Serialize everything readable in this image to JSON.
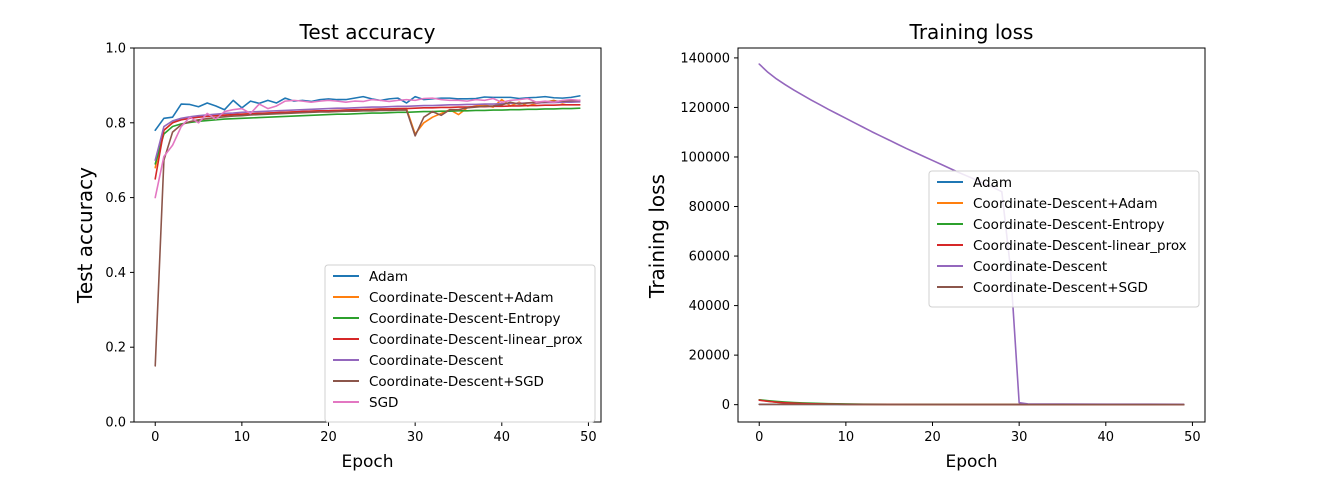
{
  "chart_data": [
    {
      "type": "line",
      "title": "Test accuracy",
      "xlabel": "Epoch",
      "ylabel": "Test accuracy",
      "xlim": [
        -2.45,
        51.45
      ],
      "ylim": [
        0.0,
        1.0
      ],
      "xticks": [
        0,
        10,
        20,
        30,
        40,
        50
      ],
      "yticks": [
        0.0,
        0.2,
        0.4,
        0.6,
        0.8,
        1.0
      ],
      "xtick_labels": [
        "0",
        "10",
        "20",
        "30",
        "40",
        "50"
      ],
      "ytick_labels": [
        "0.0",
        "0.2",
        "0.4",
        "0.6",
        "0.8",
        "1.0"
      ],
      "legend_position": "lower right",
      "grid": false,
      "series": [
        {
          "name": "Adam",
          "color": "#1f77b4",
          "x": [
            0,
            1,
            2,
            3,
            4,
            5,
            6,
            7,
            8,
            9,
            10,
            11,
            12,
            13,
            14,
            15,
            16,
            17,
            18,
            19,
            20,
            21,
            22,
            23,
            24,
            25,
            26,
            27,
            28,
            29,
            30,
            31,
            32,
            33,
            34,
            35,
            36,
            37,
            38,
            39,
            40,
            41,
            42,
            43,
            44,
            45,
            46,
            47,
            48,
            49
          ],
          "y": [
            0.78,
            0.812,
            0.815,
            0.85,
            0.849,
            0.843,
            0.853,
            0.845,
            0.835,
            0.86,
            0.84,
            0.858,
            0.852,
            0.86,
            0.853,
            0.866,
            0.858,
            0.86,
            0.857,
            0.862,
            0.864,
            0.862,
            0.862,
            0.866,
            0.87,
            0.864,
            0.86,
            0.864,
            0.866,
            0.853,
            0.87,
            0.862,
            0.864,
            0.866,
            0.866,
            0.864,
            0.864,
            0.865,
            0.869,
            0.868,
            0.868,
            0.868,
            0.865,
            0.867,
            0.868,
            0.87,
            0.867,
            0.866,
            0.868,
            0.872
          ]
        },
        {
          "name": "Coordinate-Descent+Adam",
          "color": "#ff7f0e",
          "x": [
            0,
            1,
            2,
            3,
            4,
            5,
            6,
            7,
            8,
            9,
            10,
            11,
            12,
            13,
            14,
            15,
            16,
            17,
            18,
            19,
            20,
            21,
            22,
            23,
            24,
            25,
            26,
            27,
            28,
            29,
            30,
            31,
            32,
            33,
            34,
            35,
            36,
            37,
            38,
            39,
            40,
            41,
            42,
            43,
            44,
            45,
            46,
            47,
            48,
            49
          ],
          "y": [
            0.68,
            0.78,
            0.8,
            0.81,
            0.814,
            0.816,
            0.818,
            0.82,
            0.821,
            0.822,
            0.823,
            0.824,
            0.825,
            0.826,
            0.827,
            0.828,
            0.829,
            0.83,
            0.831,
            0.832,
            0.832,
            0.833,
            0.834,
            0.834,
            0.835,
            0.836,
            0.836,
            0.837,
            0.837,
            0.838,
            0.77,
            0.8,
            0.815,
            0.825,
            0.835,
            0.822,
            0.84,
            0.845,
            0.848,
            0.842,
            0.862,
            0.845,
            0.855,
            0.845,
            0.852,
            0.855,
            0.86,
            0.853,
            0.858,
            0.856
          ]
        },
        {
          "name": "Coordinate-Descent-Entropy",
          "color": "#2ca02c",
          "x": [
            0,
            1,
            2,
            3,
            4,
            5,
            6,
            7,
            8,
            9,
            10,
            11,
            12,
            13,
            14,
            15,
            16,
            17,
            18,
            19,
            20,
            21,
            22,
            23,
            24,
            25,
            26,
            27,
            28,
            29,
            30,
            31,
            32,
            33,
            34,
            35,
            36,
            37,
            38,
            39,
            40,
            41,
            42,
            43,
            44,
            45,
            46,
            47,
            48,
            49
          ],
          "y": [
            0.69,
            0.77,
            0.79,
            0.797,
            0.801,
            0.804,
            0.806,
            0.808,
            0.81,
            0.811,
            0.812,
            0.813,
            0.814,
            0.815,
            0.816,
            0.817,
            0.818,
            0.819,
            0.82,
            0.821,
            0.822,
            0.823,
            0.823,
            0.824,
            0.825,
            0.826,
            0.826,
            0.827,
            0.828,
            0.828,
            0.829,
            0.83,
            0.83,
            0.831,
            0.831,
            0.832,
            0.832,
            0.833,
            0.833,
            0.834,
            0.834,
            0.835,
            0.835,
            0.836,
            0.836,
            0.837,
            0.837,
            0.838,
            0.838,
            0.839
          ]
        },
        {
          "name": "Coordinate-Descent-linear_prox",
          "color": "#d62728",
          "x": [
            0,
            1,
            2,
            3,
            4,
            5,
            6,
            7,
            8,
            9,
            10,
            11,
            12,
            13,
            14,
            15,
            16,
            17,
            18,
            19,
            20,
            21,
            22,
            23,
            24,
            25,
            26,
            27,
            28,
            29,
            30,
            31,
            32,
            33,
            34,
            35,
            36,
            37,
            38,
            39,
            40,
            41,
            42,
            43,
            44,
            45,
            46,
            47,
            48,
            49
          ],
          "y": [
            0.65,
            0.78,
            0.8,
            0.808,
            0.812,
            0.815,
            0.817,
            0.819,
            0.82,
            0.822,
            0.823,
            0.824,
            0.825,
            0.826,
            0.827,
            0.828,
            0.829,
            0.83,
            0.831,
            0.832,
            0.832,
            0.833,
            0.834,
            0.835,
            0.835,
            0.836,
            0.837,
            0.837,
            0.838,
            0.838,
            0.839,
            0.84,
            0.84,
            0.841,
            0.841,
            0.842,
            0.842,
            0.843,
            0.843,
            0.844,
            0.844,
            0.845,
            0.845,
            0.846,
            0.846,
            0.847,
            0.847,
            0.848,
            0.848,
            0.848
          ]
        },
        {
          "name": "Coordinate-Descent",
          "color": "#9467bd",
          "x": [
            0,
            1,
            2,
            3,
            4,
            5,
            6,
            7,
            8,
            9,
            10,
            11,
            12,
            13,
            14,
            15,
            16,
            17,
            18,
            19,
            20,
            21,
            22,
            23,
            24,
            25,
            26,
            27,
            28,
            29,
            30,
            31,
            32,
            33,
            34,
            35,
            36,
            37,
            38,
            39,
            40,
            41,
            42,
            43,
            44,
            45,
            46,
            47,
            48,
            49
          ],
          "y": [
            0.7,
            0.79,
            0.805,
            0.812,
            0.816,
            0.819,
            0.821,
            0.823,
            0.825,
            0.826,
            0.828,
            0.829,
            0.83,
            0.831,
            0.832,
            0.833,
            0.834,
            0.835,
            0.836,
            0.837,
            0.838,
            0.839,
            0.839,
            0.84,
            0.841,
            0.842,
            0.842,
            0.843,
            0.844,
            0.844,
            0.845,
            0.846,
            0.846,
            0.847,
            0.848,
            0.848,
            0.849,
            0.849,
            0.85,
            0.85,
            0.851,
            0.852,
            0.852,
            0.853,
            0.853,
            0.854,
            0.854,
            0.855,
            0.855,
            0.856
          ]
        },
        {
          "name": "Coordinate-Descent+SGD",
          "color": "#8c564b",
          "x": [
            0,
            1,
            2,
            3,
            4,
            5,
            6,
            7,
            8,
            9,
            10,
            11,
            12,
            13,
            14,
            15,
            16,
            17,
            18,
            19,
            20,
            21,
            22,
            23,
            24,
            25,
            26,
            27,
            28,
            29,
            30,
            31,
            32,
            33,
            34,
            35,
            36,
            37,
            38,
            39,
            40,
            41,
            42,
            43,
            44,
            45,
            46,
            47,
            48,
            49
          ],
          "y": [
            0.15,
            0.7,
            0.775,
            0.795,
            0.803,
            0.808,
            0.811,
            0.814,
            0.816,
            0.818,
            0.819,
            0.821,
            0.822,
            0.823,
            0.824,
            0.825,
            0.826,
            0.827,
            0.828,
            0.829,
            0.829,
            0.83,
            0.831,
            0.831,
            0.832,
            0.832,
            0.833,
            0.833,
            0.834,
            0.834,
            0.765,
            0.815,
            0.83,
            0.82,
            0.835,
            0.835,
            0.84,
            0.842,
            0.844,
            0.845,
            0.848,
            0.855,
            0.85,
            0.853,
            0.855,
            0.856,
            0.857,
            0.858,
            0.859,
            0.86
          ]
        },
        {
          "name": "SGD",
          "color": "#e377c2",
          "x": [
            0,
            1,
            2,
            3,
            4,
            5,
            6,
            7,
            8,
            9,
            10,
            11,
            12,
            13,
            14,
            15,
            16,
            17,
            18,
            19,
            20,
            21,
            22,
            23,
            24,
            25,
            26,
            27,
            28,
            29,
            30,
            31,
            32,
            33,
            34,
            35,
            36,
            37,
            38,
            39,
            40,
            41,
            42,
            43,
            44,
            45,
            46,
            47,
            48,
            49
          ],
          "y": [
            0.6,
            0.71,
            0.74,
            0.79,
            0.815,
            0.8,
            0.825,
            0.81,
            0.83,
            0.835,
            0.838,
            0.825,
            0.85,
            0.838,
            0.845,
            0.858,
            0.86,
            0.858,
            0.855,
            0.858,
            0.86,
            0.858,
            0.855,
            0.858,
            0.857,
            0.862,
            0.86,
            0.857,
            0.86,
            0.862,
            0.86,
            0.865,
            0.866,
            0.862,
            0.86,
            0.86,
            0.858,
            0.862,
            0.86,
            0.865,
            0.855,
            0.86,
            0.862,
            0.865,
            0.855,
            0.858,
            0.855,
            0.86,
            0.862,
            0.86
          ]
        }
      ]
    },
    {
      "type": "line",
      "title": "Training loss",
      "xlabel": "Epoch",
      "ylabel": "Training loss",
      "xlim": [
        -2.45,
        51.45
      ],
      "ylim": [
        -7000,
        144000
      ],
      "xticks": [
        0,
        10,
        20,
        30,
        40,
        50
      ],
      "yticks": [
        0,
        20000,
        40000,
        60000,
        80000,
        100000,
        120000,
        140000
      ],
      "xtick_labels": [
        "0",
        "10",
        "20",
        "30",
        "40",
        "50"
      ],
      "ytick_labels": [
        "0",
        "20000",
        "40000",
        "60000",
        "80000",
        "100000",
        "120000",
        "140000"
      ],
      "legend_position": "center right",
      "grid": false,
      "series": [
        {
          "name": "Adam",
          "color": "#1f77b4",
          "x": [
            0,
            5,
            10,
            15,
            20,
            25,
            30,
            35,
            40,
            45,
            49
          ],
          "y": [
            150,
            120,
            90,
            80,
            70,
            60,
            55,
            50,
            45,
            40,
            40
          ]
        },
        {
          "name": "Coordinate-Descent+Adam",
          "color": "#ff7f0e",
          "x": [
            0,
            1,
            2,
            3,
            4,
            5,
            6,
            7,
            8,
            9,
            10,
            12,
            15,
            20,
            25,
            30,
            35,
            40,
            45,
            49
          ],
          "y": [
            1900,
            1400,
            1000,
            750,
            580,
            450,
            350,
            280,
            220,
            180,
            150,
            110,
            80,
            50,
            40,
            40,
            35,
            30,
            30,
            25
          ]
        },
        {
          "name": "Coordinate-Descent-Entropy",
          "color": "#2ca02c",
          "x": [
            0,
            1,
            2,
            3,
            4,
            5,
            6,
            7,
            8,
            9,
            10,
            12,
            15,
            20,
            25,
            30,
            35,
            40,
            45,
            49
          ],
          "y": [
            1950,
            1600,
            1300,
            1050,
            850,
            700,
            580,
            480,
            400,
            330,
            280,
            200,
            130,
            80,
            60,
            50,
            45,
            40,
            38,
            35
          ]
        },
        {
          "name": "Coordinate-Descent-linear_prox",
          "color": "#d62728",
          "x": [
            0,
            1,
            2,
            3,
            4,
            5,
            6,
            7,
            8,
            9,
            10,
            12,
            15,
            20,
            25,
            30,
            35,
            40,
            45,
            49
          ],
          "y": [
            1800,
            1350,
            1000,
            760,
            590,
            460,
            360,
            290,
            230,
            190,
            160,
            120,
            90,
            60,
            50,
            45,
            40,
            35,
            32,
            30
          ]
        },
        {
          "name": "Coordinate-Descent",
          "color": "#9467bd",
          "x": [
            0,
            1,
            2,
            3,
            4,
            5,
            6,
            7,
            8,
            9,
            10,
            11,
            12,
            13,
            14,
            15,
            16,
            17,
            18,
            19,
            20,
            21,
            22,
            23,
            24,
            25,
            26,
            27,
            28,
            29,
            30,
            31,
            35,
            40,
            45,
            49
          ],
          "y": [
            137500,
            134200,
            131500,
            129200,
            127000,
            125000,
            123000,
            121100,
            119200,
            117400,
            115600,
            113800,
            112000,
            110200,
            108500,
            106800,
            105100,
            103400,
            101800,
            100200,
            98600,
            97000,
            95400,
            93800,
            92300,
            90800,
            89300,
            87700,
            86000,
            55000,
            800,
            300,
            250,
            200,
            180,
            160
          ]
        },
        {
          "name": "Coordinate-Descent+SGD",
          "color": "#8c564b",
          "x": [
            0,
            5,
            10,
            15,
            20,
            25,
            30,
            35,
            40,
            45,
            49
          ],
          "y": [
            100,
            90,
            80,
            70,
            60,
            55,
            50,
            45,
            40,
            40,
            35
          ]
        }
      ]
    }
  ]
}
